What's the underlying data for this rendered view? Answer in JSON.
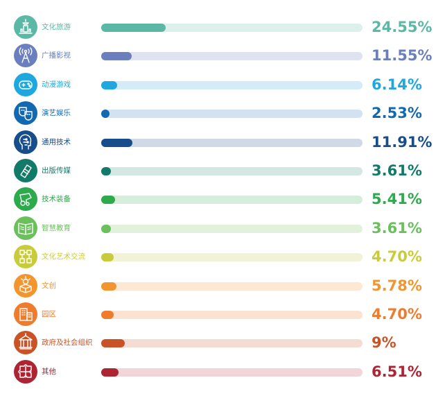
{
  "chart_data": {
    "type": "bar",
    "orientation": "horizontal",
    "categories": [
      "文化旅游",
      "广播影视",
      "动漫游戏",
      "演艺娱乐",
      "通用技术",
      "出版传媒",
      "技术装备",
      "智慧教育",
      "文化艺术交流",
      "文创",
      "园区",
      "政府及社会组织",
      "其他"
    ],
    "values": [
      24.55,
      11.55,
      6.14,
      2.53,
      11.91,
      3.61,
      5.41,
      3.61,
      4.7,
      5.78,
      4.7,
      9,
      6.51
    ],
    "value_labels": [
      "24.55%",
      "11.55%",
      "6.14%",
      "2.53%",
      "11.91%",
      "3.61%",
      "5.41%",
      "3.61%",
      "4.70%",
      "5.78%",
      "4.70%",
      "9%",
      "6.51%"
    ],
    "unit": "%",
    "xlim": [
      0,
      100
    ],
    "grid": false,
    "legend": "none",
    "colors": [
      "#5bb8a5",
      "#6b7fbe",
      "#1ea8df",
      "#1369b0",
      "#164d8a",
      "#127a68",
      "#2daa4c",
      "#6bbf5d",
      "#c9cc3a",
      "#f3952e",
      "#ef7b2c",
      "#c95327",
      "#ad2432"
    ],
    "track_colors": [
      "#dcf0ec",
      "#dfe3f1",
      "#d4ecf8",
      "#d3e2f1",
      "#d0d9e5",
      "#d3e8e3",
      "#d6eddc",
      "#e1f1dc",
      "#f1f2d6",
      "#fde8d3",
      "#fce3d1",
      "#f5dcd2",
      "#f0d6d8"
    ],
    "icons": [
      "pagoda-icon",
      "broadcast-tower-icon",
      "gamepad-icon",
      "theater-masks-icon",
      "circuit-head-icon",
      "book-icon",
      "machinery-icon",
      "open-book-icon",
      "exchange-nodes-icon",
      "idea-box-icon",
      "buildings-icon",
      "government-building-icon",
      "puzzle-icon"
    ]
  }
}
